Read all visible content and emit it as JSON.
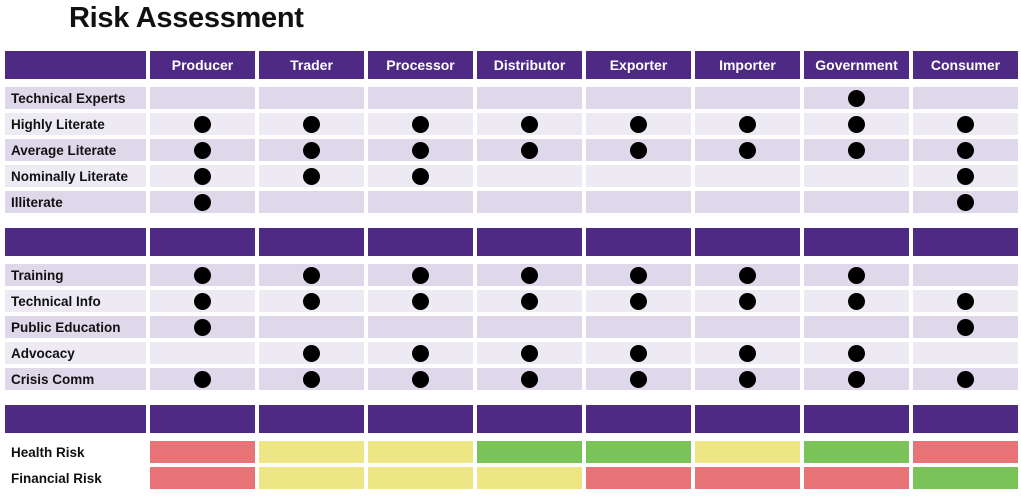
{
  "title": "Risk Assessment",
  "columns": [
    "Producer",
    "Trader",
    "Processor",
    "Distributor",
    "Exporter",
    "Importer",
    "Government",
    "Consumer"
  ],
  "colors": {
    "header": "#4f2a85",
    "red": "#e87377",
    "yellow": "#ece685",
    "green": "#79c359"
  },
  "section1": [
    {
      "label": "Technical Experts",
      "dots": [
        0,
        0,
        0,
        0,
        0,
        0,
        1,
        0
      ]
    },
    {
      "label": "Highly Literate",
      "dots": [
        1,
        1,
        1,
        1,
        1,
        1,
        1,
        1
      ]
    },
    {
      "label": "Average Literate",
      "dots": [
        1,
        1,
        1,
        1,
        1,
        1,
        1,
        1
      ]
    },
    {
      "label": "Nominally Literate",
      "dots": [
        1,
        1,
        1,
        0,
        0,
        0,
        0,
        1
      ]
    },
    {
      "label": "Illiterate",
      "dots": [
        1,
        0,
        0,
        0,
        0,
        0,
        0,
        1
      ]
    }
  ],
  "section2": [
    {
      "label": "Training",
      "dots": [
        1,
        1,
        1,
        1,
        1,
        1,
        1,
        0
      ]
    },
    {
      "label": "Technical Info",
      "dots": [
        1,
        1,
        1,
        1,
        1,
        1,
        1,
        1
      ]
    },
    {
      "label": "Public Education",
      "dots": [
        1,
        0,
        0,
        0,
        0,
        0,
        0,
        1
      ]
    },
    {
      "label": "Advocacy",
      "dots": [
        0,
        1,
        1,
        1,
        1,
        1,
        1,
        0
      ]
    },
    {
      "label": "Crisis Comm",
      "dots": [
        1,
        1,
        1,
        1,
        1,
        1,
        1,
        1
      ]
    }
  ],
  "risks": [
    {
      "label": "Health Risk",
      "levels": [
        "red",
        "yellow",
        "yellow",
        "green",
        "green",
        "yellow",
        "green",
        "red"
      ]
    },
    {
      "label": "Financial Risk",
      "levels": [
        "red",
        "yellow",
        "yellow",
        "yellow",
        "red",
        "red",
        "red",
        "green"
      ]
    }
  ]
}
